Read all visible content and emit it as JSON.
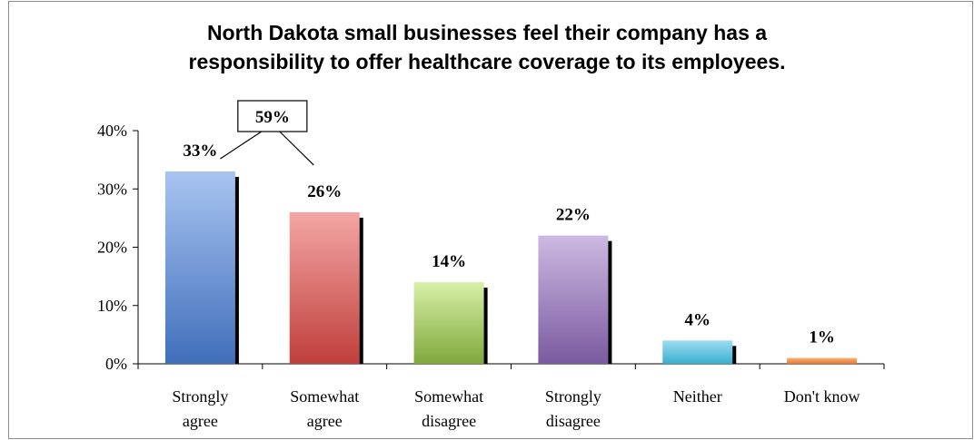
{
  "chart_data": {
    "type": "bar",
    "title_lines": [
      "North Dakota small businesses feel their company has a",
      "responsibility to offer healthcare coverage to its employees."
    ],
    "categories": [
      [
        "Strongly",
        "agree"
      ],
      [
        "Somewhat",
        "agree"
      ],
      [
        "Somewhat",
        "disagree"
      ],
      [
        "Strongly",
        "disagree"
      ],
      [
        "Neither"
      ],
      [
        "Don't know"
      ]
    ],
    "values": [
      33,
      26,
      14,
      22,
      4,
      1
    ],
    "data_labels": [
      "33%",
      "26%",
      "14%",
      "22%",
      "4%",
      "1%"
    ],
    "ylim": [
      0,
      40
    ],
    "y_ticks": [
      0,
      10,
      20,
      30,
      40
    ],
    "y_tick_labels": [
      "0%",
      "10%",
      "20%",
      "30%",
      "40%"
    ],
    "colors": [
      [
        "#a9c4f2",
        "#3f6fba"
      ],
      [
        "#f4a6a4",
        "#bf3f3c"
      ],
      [
        "#d8f0a8",
        "#7fa83c"
      ],
      [
        "#cdb9e2",
        "#7a5aa0"
      ],
      [
        "#9fdcf0",
        "#3aaed0"
      ],
      [
        "#f8b27a",
        "#e8782e"
      ]
    ],
    "callout": {
      "label": "59%",
      "groups": [
        0,
        1
      ]
    },
    "grid": false,
    "legend": "none"
  }
}
